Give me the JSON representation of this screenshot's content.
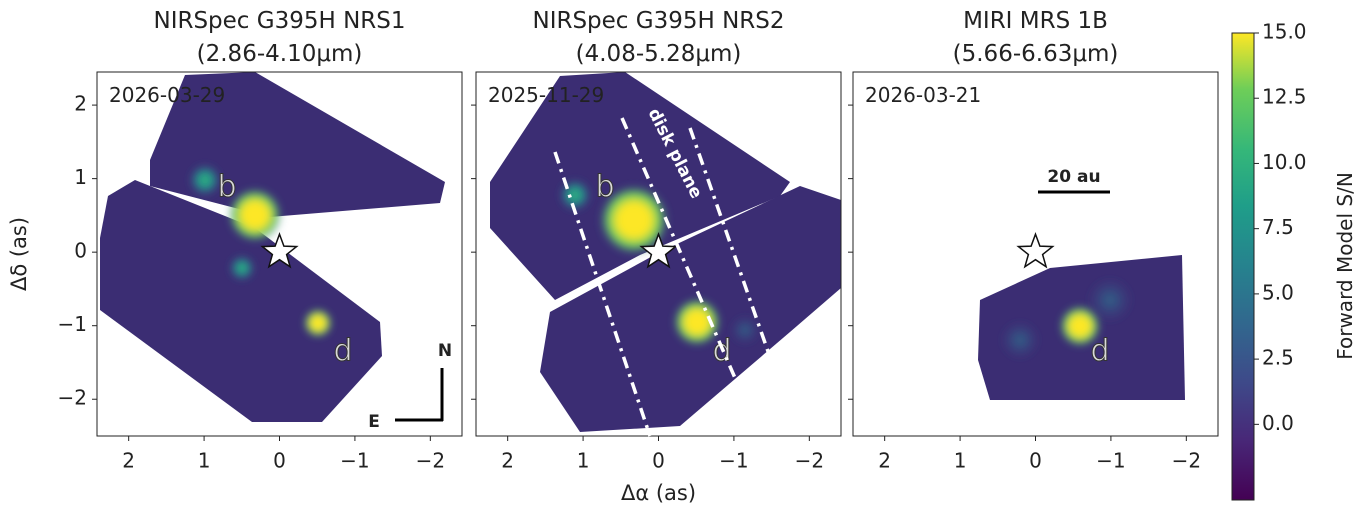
{
  "chart_data": [
    {
      "type": "image",
      "title": "NIRSpec G395H NRS1",
      "subtitle": "(2.86-4.10μm)",
      "date": "2026-03-29",
      "xlim": [
        2.42,
        -2.42
      ],
      "ylim": [
        -2.5,
        2.45
      ],
      "xticks": [
        2,
        1,
        0,
        {
          "value": -1,
          "label": "−1"
        },
        {
          "value": -2,
          "label": "−2"
        }
      ],
      "yticks": [
        {
          "value": -2,
          "label": "−2"
        },
        {
          "value": -1,
          "label": "−1"
        },
        0,
        1,
        2
      ],
      "ylabel": "Δδ (as)",
      "labels": [
        "b",
        "d"
      ],
      "compass": [
        "N",
        "E"
      ]
    },
    {
      "type": "image",
      "title": "NIRSpec G395H NRS2",
      "subtitle": "(4.08-5.28μm)",
      "date": "2025-11-29",
      "xlim": [
        2.42,
        -2.42
      ],
      "ylim": [
        -2.5,
        2.45
      ],
      "xticks": [
        2,
        1,
        0,
        {
          "value": -1,
          "label": "−1"
        },
        {
          "value": -2,
          "label": "−2"
        }
      ],
      "yticks": [
        {
          "value": -2,
          "label": "−2"
        },
        {
          "value": -1,
          "label": "−1"
        },
        0,
        1,
        2
      ],
      "xlabel": "Δα (as)",
      "labels": [
        "b",
        "d"
      ],
      "annotation": "disk plane"
    },
    {
      "type": "image",
      "title": "MIRI MRS 1B",
      "subtitle": "(5.66-6.63μm)",
      "date": "2026-03-21",
      "xlim": [
        2.42,
        -2.42
      ],
      "ylim": [
        -2.5,
        2.45
      ],
      "xticks": [
        2,
        1,
        0,
        {
          "value": -1,
          "label": "−1"
        },
        {
          "value": -2,
          "label": "−2"
        }
      ],
      "yticks": [
        {
          "value": -2,
          "label": "−2"
        },
        {
          "value": -1,
          "label": "−1"
        },
        0,
        1,
        2
      ],
      "labels": [
        "d"
      ],
      "scalebar": "20 au"
    },
    {
      "type": "colorbar",
      "label": "Forward Model S/N",
      "lim": [
        -2.9,
        15
      ],
      "ticks": [
        {
          "value": 0,
          "label": "0.0"
        },
        2.5,
        {
          "value": 5,
          "label": "5.0"
        },
        7.5,
        {
          "value": 10,
          "label": "10.0"
        },
        12.5,
        {
          "value": 15,
          "label": "15.0"
        }
      ]
    }
  ]
}
